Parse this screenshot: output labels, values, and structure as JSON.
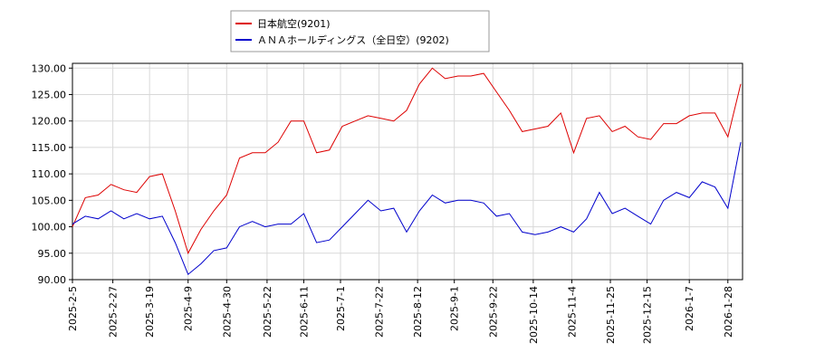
{
  "chart_data": {
    "type": "line",
    "x": [
      "2025-02-05",
      "2025-02-12",
      "2025-02-19",
      "2025-02-26",
      "2025-03-05",
      "2025-03-12",
      "2025-03-19",
      "2025-03-26",
      "2025-04-02",
      "2025-04-09",
      "2025-04-16",
      "2025-04-23",
      "2025-04-30",
      "2025-05-07",
      "2025-05-14",
      "2025-05-21",
      "2025-05-28",
      "2025-06-04",
      "2025-06-11",
      "2025-06-18",
      "2025-06-25",
      "2025-07-02",
      "2025-07-09",
      "2025-07-16",
      "2025-07-23",
      "2025-07-30",
      "2025-08-06",
      "2025-08-13",
      "2025-08-20",
      "2025-08-27",
      "2025-09-03",
      "2025-09-10",
      "2025-09-17",
      "2025-09-24",
      "2025-10-01",
      "2025-10-08",
      "2025-10-15",
      "2025-10-22",
      "2025-10-29",
      "2025-11-05",
      "2025-11-12",
      "2025-11-19",
      "2025-11-26",
      "2025-12-03",
      "2025-12-10",
      "2025-12-17",
      "2025-12-24",
      "2025-12-31",
      "2026-01-07",
      "2026-01-14",
      "2026-01-21",
      "2026-01-28",
      "2026-02-04"
    ],
    "series": [
      {
        "name": "日本航空(9201)",
        "color": "#dd0000",
        "values": [
          100,
          105.5,
          106,
          108,
          107,
          106.5,
          109.5,
          110,
          103,
          95,
          99.5,
          103,
          106,
          113,
          114,
          114,
          116,
          120,
          120,
          114,
          114.5,
          119,
          120,
          121,
          120.5,
          120,
          122,
          127,
          130,
          128,
          128.5,
          128.5,
          129,
          125.5,
          122,
          118,
          118.5,
          119,
          121.5,
          114,
          120.5,
          121,
          118,
          119,
          117,
          116.5,
          119.5,
          119.5,
          121,
          121.5,
          121.5,
          117,
          127
        ]
      },
      {
        "name": "ＡＮＡホールディングス（全日空）(9202)",
        "color": "#0000cc",
        "values": [
          100.5,
          102,
          101.5,
          103,
          101.5,
          102.5,
          101.5,
          102,
          97,
          91,
          93,
          95.5,
          96,
          100,
          101,
          100,
          100.5,
          100.5,
          102.5,
          97,
          97.5,
          100,
          102.5,
          105,
          103,
          103.5,
          99,
          103,
          106,
          104.5,
          105,
          105,
          104.5,
          102,
          102.5,
          99,
          98.5,
          99,
          100,
          99,
          101.5,
          106.5,
          102.5,
          103.5,
          102,
          100.5,
          105,
          106.5,
          105.5,
          108.5,
          107.5,
          103.5,
          116
        ]
      }
    ],
    "xlim": [
      "2025-02-05",
      "2026-02-05"
    ],
    "xticks": [
      "2025-2-5",
      "2025-2-27",
      "2025-3-19",
      "2025-4-9",
      "2025-4-30",
      "2025-5-22",
      "2025-6-11",
      "2025-7-1",
      "2025-7-22",
      "2025-8-12",
      "2025-9-1",
      "2025-9-22",
      "2025-10-14",
      "2025-11-4",
      "2025-11-25",
      "2025-12-15",
      "2026-1-7",
      "2026-1-28"
    ],
    "ylim": [
      90,
      130.9
    ],
    "yticks": [
      {
        "value": 90,
        "label": "90.00"
      },
      {
        "value": 95,
        "label": "95.00"
      },
      {
        "value": 100,
        "label": "100.00"
      },
      {
        "value": 105,
        "label": "105.00"
      },
      {
        "value": 110,
        "label": "110.00"
      },
      {
        "value": 115,
        "label": "115.00"
      },
      {
        "value": 120,
        "label": "120.00"
      },
      {
        "value": 125,
        "label": "125.00"
      },
      {
        "value": 130,
        "label": "130.00"
      }
    ],
    "grid": true
  }
}
